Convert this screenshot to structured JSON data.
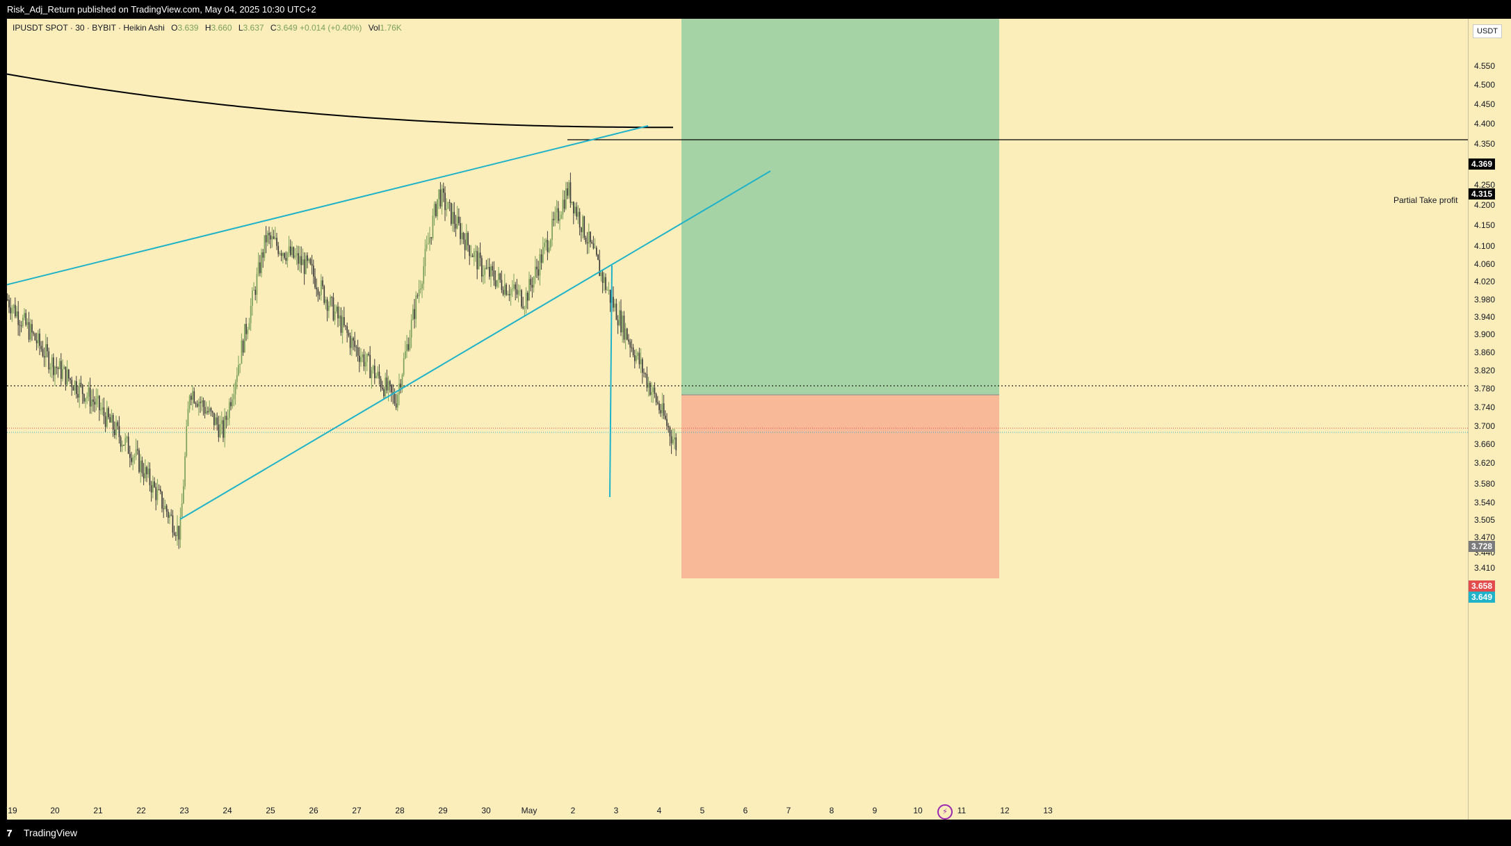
{
  "header": {
    "publish_info": "Risk_Adj_Return published on TradingView.com, May 04, 2025 10:30 UTC+2"
  },
  "legend": {
    "symbol": "IPUSDT SPOT · 30 · BYBIT · Heikin Ashi",
    "open_label": "O",
    "open": "3.639",
    "high_label": "H",
    "high": "3.660",
    "low_label": "L",
    "low": "3.637",
    "close_label": "C",
    "close": "3.649",
    "change": "+0.014 (+0.40%)",
    "volume_label": "Vol",
    "volume": "1.76K"
  },
  "currency": "USDT",
  "price_ticks": [
    "4.550",
    "4.500",
    "4.450",
    "4.400",
    "4.350",
    "4.300",
    "4.250",
    "4.200",
    "4.150",
    "4.100",
    "4.060",
    "4.020",
    "3.980",
    "3.940",
    "3.900",
    "3.860",
    "3.820",
    "3.780",
    "3.740",
    "3.700",
    "3.660",
    "3.620",
    "3.580",
    "3.540",
    "3.505",
    "3.470",
    "3.440",
    "3.410",
    "3.380"
  ],
  "price_tags": {
    "ma": "4.369",
    "partial_take_profit": "4.315",
    "entry": "3.728",
    "prev_close": "3.658",
    "last": "3.649"
  },
  "partial_take_profit_label": "Partial Take profit",
  "time_ticks": [
    "19",
    "20",
    "21",
    "22",
    "23",
    "24",
    "25",
    "26",
    "27",
    "28",
    "29",
    "30",
    "May",
    "2",
    "3",
    "4",
    "5",
    "6",
    "7",
    "8",
    "9",
    "10",
    "11",
    "12",
    "13"
  ],
  "colors": {
    "background": "#fbeebb",
    "up": "#7aa05a",
    "down": "#3b3b3b",
    "trendline": "#1fb2c9",
    "profit_zone": "#a5d3a5",
    "loss_zone": "#f8b998",
    "ma_line": "#000000"
  },
  "chart_data": {
    "type": "candlestick",
    "symbol": "IPUSDT SPOT",
    "interval": "30",
    "exchange": "BYBIT",
    "chart_style": "Heikin Ashi",
    "y_axis_range": [
      3.35,
      4.58
    ],
    "x_axis": [
      "19",
      "20",
      "21",
      "22",
      "23",
      "24",
      "25",
      "26",
      "27",
      "28",
      "29",
      "30",
      "May",
      "2",
      "3",
      "4"
    ],
    "approx_daily_path": [
      {
        "day": "19",
        "price": 3.98
      },
      {
        "day": "20",
        "price": 3.84
      },
      {
        "day": "21",
        "price": 3.75
      },
      {
        "day": "22",
        "price": 3.62
      },
      {
        "day": "23",
        "price": 3.45
      },
      {
        "day": "23",
        "price": 3.78
      },
      {
        "day": "24",
        "price": 3.68
      },
      {
        "day": "25",
        "price": 4.12
      },
      {
        "day": "26",
        "price": 4.05
      },
      {
        "day": "27",
        "price": 3.88
      },
      {
        "day": "28",
        "price": 3.75
      },
      {
        "day": "29",
        "price": 4.22
      },
      {
        "day": "30",
        "price": 4.05
      },
      {
        "day": "May",
        "price": 3.98
      },
      {
        "day": "2",
        "price": 4.23
      },
      {
        "day": "3",
        "price": 3.98
      },
      {
        "day": "4",
        "price": 3.649
      }
    ],
    "moving_average": {
      "start": 4.49,
      "end": 4.369
    },
    "trendlines": [
      {
        "name": "upper",
        "from": {
          "day": "19",
          "price": 3.97
        },
        "to": {
          "day": "3",
          "price": 4.35
        }
      },
      {
        "name": "lower",
        "from": {
          "day": "23",
          "price": 3.47
        },
        "to": {
          "day": "6",
          "price": 4.24
        }
      }
    ],
    "levels": {
      "partial_take_profit": 4.315,
      "entry": 3.728,
      "dotted": 3.745
    },
    "long_position": {
      "target": 4.58,
      "entry": 3.728,
      "stop": 3.355
    }
  }
}
